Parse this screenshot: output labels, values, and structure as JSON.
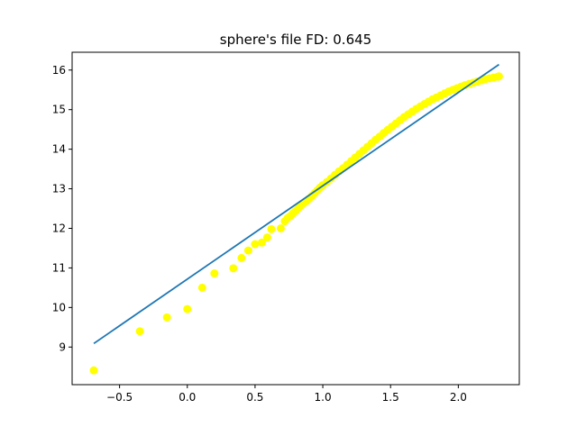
{
  "chart_data": {
    "type": "scatter",
    "title": "sphere's file FD: 0.645",
    "xlabel": "",
    "ylabel": "",
    "xlim": [
      -0.85,
      2.45
    ],
    "ylim": [
      8.05,
      16.45
    ],
    "x_ticks": [
      -0.5,
      0.0,
      0.5,
      1.0,
      1.5,
      2.0
    ],
    "x_tick_labels": [
      "−0.5",
      "0.0",
      "0.5",
      "1.0",
      "1.5",
      "2.0"
    ],
    "y_ticks": [
      9,
      10,
      11,
      12,
      13,
      14,
      15,
      16
    ],
    "y_tick_labels": [
      "9",
      "10",
      "11",
      "12",
      "13",
      "14",
      "15",
      "16"
    ],
    "grid": false,
    "series": [
      {
        "kind": "scatter",
        "color": "#ffff00",
        "x": [
          -0.69,
          -0.35,
          -0.15,
          0.0,
          0.11,
          0.2,
          0.34,
          0.4,
          0.45,
          0.5,
          0.55,
          0.59,
          0.62,
          0.69,
          0.72,
          0.74,
          0.76,
          0.78,
          0.8,
          0.82,
          0.84,
          0.86,
          0.88,
          0.9,
          0.92,
          0.94,
          0.96,
          0.98,
          1.0,
          1.03,
          1.06,
          1.09,
          1.12,
          1.15,
          1.18,
          1.21,
          1.24,
          1.27,
          1.3,
          1.33,
          1.36,
          1.39,
          1.42,
          1.45,
          1.48,
          1.51,
          1.54,
          1.57,
          1.6,
          1.63,
          1.66,
          1.69,
          1.72,
          1.75,
          1.78,
          1.81,
          1.84,
          1.87,
          1.9,
          1.93,
          1.96,
          1.99,
          2.02,
          2.05,
          2.08,
          2.11,
          2.14,
          2.17,
          2.2,
          2.23,
          2.26,
          2.29,
          2.3
        ],
        "y": [
          8.41,
          9.4,
          9.75,
          9.96,
          10.5,
          10.86,
          10.99,
          11.25,
          11.44,
          11.6,
          11.64,
          11.77,
          11.98,
          12.0,
          12.18,
          12.26,
          12.31,
          12.38,
          12.44,
          12.51,
          12.58,
          12.64,
          12.69,
          12.75,
          12.82,
          12.89,
          12.96,
          13.03,
          13.09,
          13.17,
          13.26,
          13.35,
          13.44,
          13.52,
          13.61,
          13.7,
          13.79,
          13.88,
          13.97,
          14.06,
          14.15,
          14.24,
          14.32,
          14.41,
          14.49,
          14.57,
          14.65,
          14.73,
          14.81,
          14.88,
          14.95,
          15.02,
          15.08,
          15.14,
          15.2,
          15.26,
          15.31,
          15.36,
          15.41,
          15.46,
          15.5,
          15.54,
          15.58,
          15.62,
          15.65,
          15.68,
          15.71,
          15.74,
          15.77,
          15.79,
          15.81,
          15.83,
          15.84
        ]
      },
      {
        "kind": "line",
        "color": "#1f77b4",
        "x": [
          -0.69,
          2.3
        ],
        "y": [
          9.09,
          16.14
        ]
      }
    ]
  }
}
